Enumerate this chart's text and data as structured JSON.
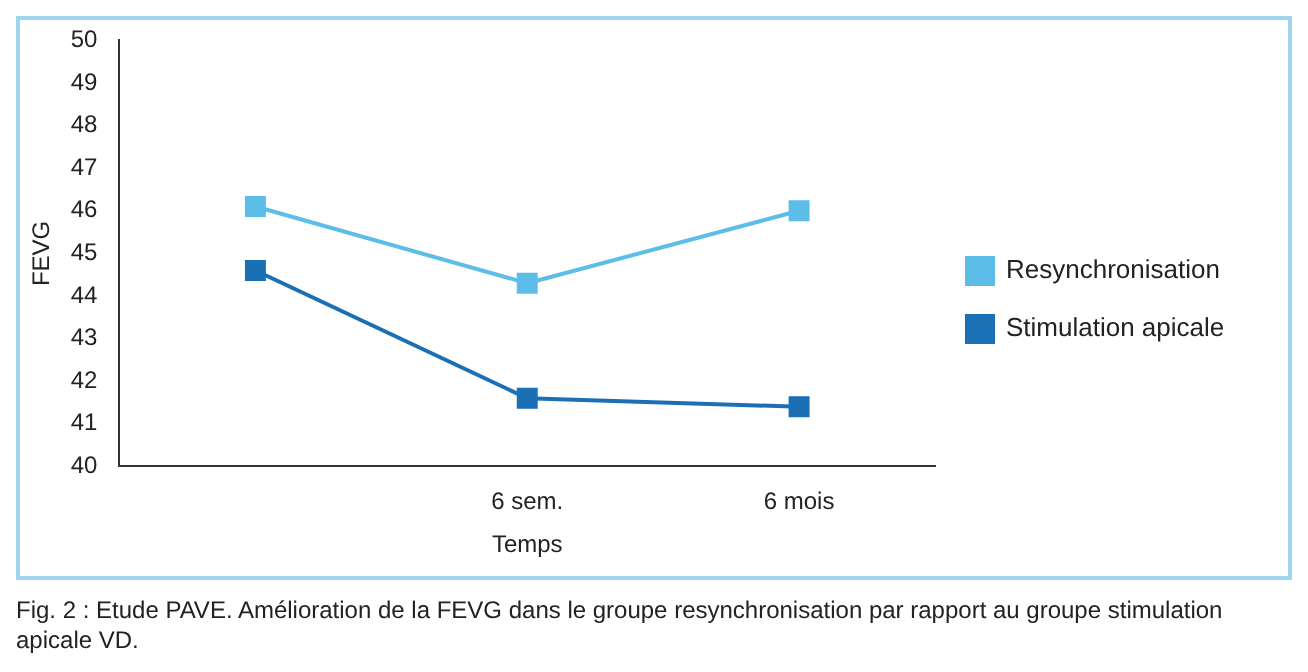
{
  "chart_data": {
    "type": "line",
    "xlabel": "Temps",
    "ylabel": "FEVG",
    "categories": [
      null,
      "6 sem.",
      "6 mois"
    ],
    "ylim": [
      40,
      50
    ],
    "yticks": [
      40,
      41,
      42,
      43,
      44,
      45,
      46,
      47,
      48,
      49,
      50
    ],
    "series": [
      {
        "name": "Resynchronisation",
        "color": "#5bbde8",
        "values": [
          46.1,
          44.3,
          46.0
        ]
      },
      {
        "name": "Stimulation apicale",
        "color": "#1a6fb5",
        "values": [
          44.6,
          41.6,
          41.4
        ]
      }
    ],
    "marker": "square",
    "line_style": "solid",
    "grid": false,
    "legend": "right",
    "annotations": [
      "Fig. 2 : Etude PAVE. Amélioration de la FEVG dans le groupe resynchronisation par rapport au groupe stimulation apicale VD."
    ]
  }
}
